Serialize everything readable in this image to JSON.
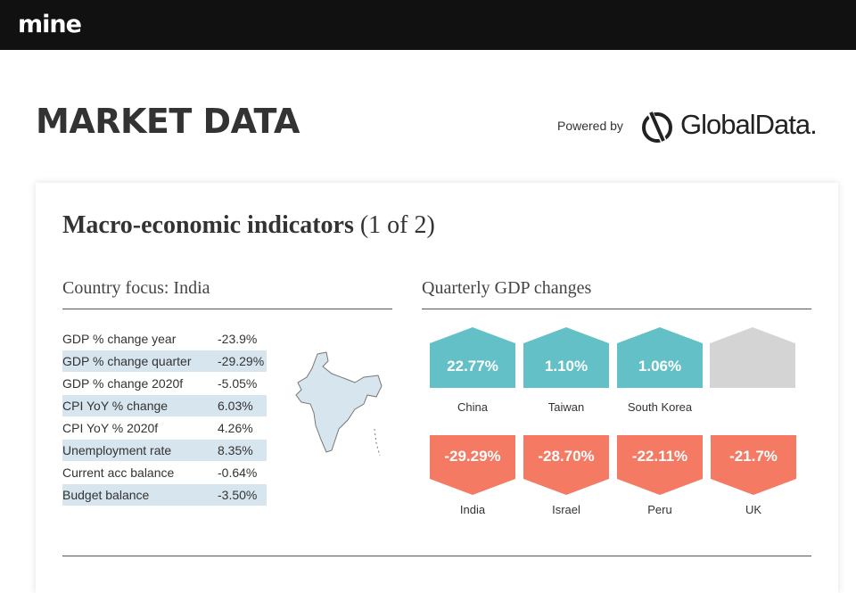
{
  "header": {
    "logo": "mine"
  },
  "page": {
    "title": "MARKET DATA",
    "powered_by": "Powered by",
    "brand": "GlobalData."
  },
  "card": {
    "title": "Macro-economic indicators",
    "subtitle": "(1 of 2)",
    "country_focus": {
      "title": "Country focus: India",
      "rows": [
        [
          "GDP % change year",
          "-23.9%"
        ],
        [
          "GDP % change quarter",
          "-29.29%"
        ],
        [
          "GDP % change 2020f",
          "-5.05%"
        ],
        [
          "CPI YoY % change",
          "6.03%"
        ],
        [
          "CPI YoY % 2020f",
          "4.26%"
        ],
        [
          "Unemployment rate",
          "8.35%"
        ],
        [
          "Current acc balance",
          "-0.64%"
        ],
        [
          "Budget balance",
          "-3.50%"
        ]
      ]
    },
    "gdp": {
      "title": "Quarterly GDP changes",
      "gainers": [
        {
          "country": "China",
          "value": "22.77%"
        },
        {
          "country": "Taiwan",
          "value": "1.10%"
        },
        {
          "country": "South Korea",
          "value": "1.06%"
        }
      ],
      "losers": [
        {
          "country": "India",
          "value": "-29.29%"
        },
        {
          "country": "Israel",
          "value": "-28.70%"
        },
        {
          "country": "Peru",
          "value": "-22.11%"
        },
        {
          "country": "UK",
          "value": "-21.7%"
        }
      ]
    }
  }
}
